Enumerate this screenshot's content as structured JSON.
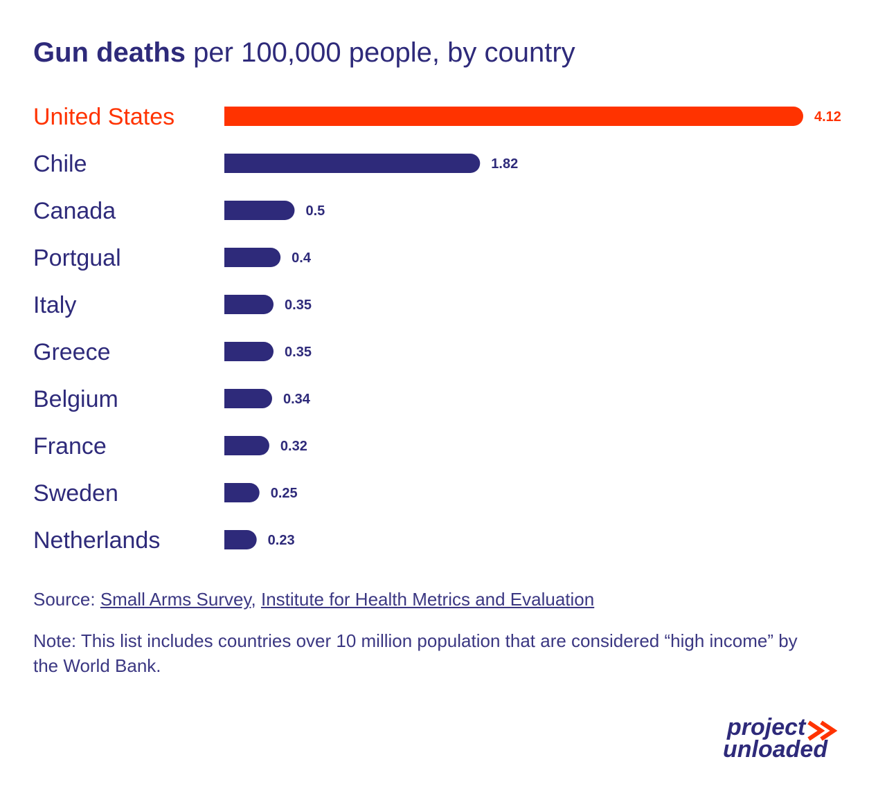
{
  "title": {
    "bold": "Gun deaths",
    "rest": "per 100,000 people, by country"
  },
  "chart_data": {
    "type": "bar",
    "orientation": "horizontal",
    "categories": [
      "United States",
      "Chile",
      "Canada",
      "Portgual",
      "Italy",
      "Greece",
      "Belgium",
      "France",
      "Sweden",
      "Netherlands"
    ],
    "values": [
      4.12,
      1.82,
      0.5,
      0.4,
      0.35,
      0.35,
      0.34,
      0.32,
      0.25,
      0.23
    ],
    "value_labels": [
      "4.12",
      "1.82",
      "0.5",
      "0.4",
      "0.35",
      "0.35",
      "0.34",
      "0.32",
      "0.25",
      "0.23"
    ],
    "highlight_index": 0,
    "xlim": [
      0,
      4.12
    ],
    "grid": false,
    "colors": {
      "highlight": "#ff3300",
      "default": "#2e2a7a"
    }
  },
  "footer": {
    "source_prefix": "Source: ",
    "source_link_1": "Small Arms Survey",
    "source_separator": ", ",
    "source_link_2": "Institute for Health Metrics and Evaluation",
    "note": "Note: This list includes countries over 10 million population that are considered “high income” by the World Bank."
  },
  "logo": {
    "line1": "project",
    "line2": "unloaded",
    "icon": "double-chevron-right-icon",
    "colors": {
      "text": "#2e2a7a",
      "accent": "#ff3300"
    }
  }
}
